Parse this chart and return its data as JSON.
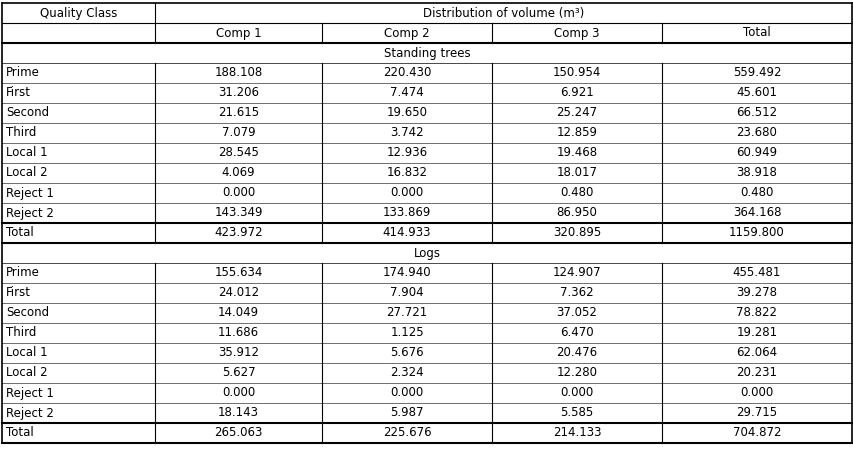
{
  "col_header_row1_left": "Quality Class",
  "col_header_row1_right": "Distribution of volume (m³)",
  "col_header_row2": [
    "",
    "Comp 1",
    "Comp 2",
    "Comp 3",
    "Total"
  ],
  "section1_title": "Standing trees",
  "section1_rows": [
    [
      "Prime",
      "188.108",
      "220.430",
      "150.954",
      "559.492"
    ],
    [
      "First",
      "31.206",
      "7.474",
      "6.921",
      "45.601"
    ],
    [
      "Second",
      "21.615",
      "19.650",
      "25.247",
      "66.512"
    ],
    [
      "Third",
      "7.079",
      "3.742",
      "12.859",
      "23.680"
    ],
    [
      "Local 1",
      "28.545",
      "12.936",
      "19.468",
      "60.949"
    ],
    [
      "Local 2",
      "4.069",
      "16.832",
      "18.017",
      "38.918"
    ],
    [
      "Reject 1",
      "0.000",
      "0.000",
      "0.480",
      "0.480"
    ],
    [
      "Reject 2",
      "143.349",
      "133.869",
      "86.950",
      "364.168"
    ]
  ],
  "section1_total": [
    "Total",
    "423.972",
    "414.933",
    "320.895",
    "1159.800"
  ],
  "section2_title": "Logs",
  "section2_rows": [
    [
      "Prime",
      "155.634",
      "174.940",
      "124.907",
      "455.481"
    ],
    [
      "First",
      "24.012",
      "7.904",
      "7.362",
      "39.278"
    ],
    [
      "Second",
      "14.049",
      "27.721",
      "37.052",
      "78.822"
    ],
    [
      "Third",
      "11.686",
      "1.125",
      "6.470",
      "19.281"
    ],
    [
      "Local 1",
      "35.912",
      "5.676",
      "20.476",
      "62.064"
    ],
    [
      "Local 2",
      "5.627",
      "2.324",
      "12.280",
      "20.231"
    ],
    [
      "Reject 1",
      "0.000",
      "0.000",
      "0.000",
      "0.000"
    ],
    [
      "Reject 2",
      "18.143",
      "5.987",
      "5.585",
      "29.715"
    ]
  ],
  "section2_total": [
    "Total",
    "265.063",
    "225.676",
    "214.133",
    "704.872"
  ],
  "background_color": "#ffffff",
  "font_size": 8.5
}
